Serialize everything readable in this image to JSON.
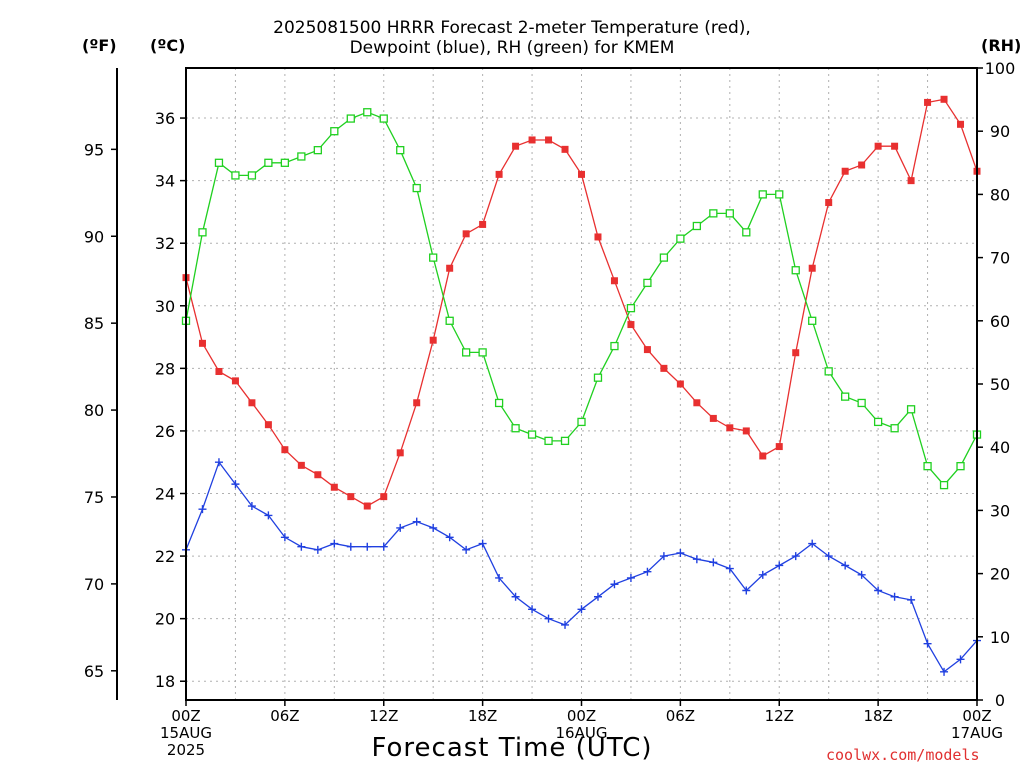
{
  "chart_data": {
    "type": "line",
    "title": [
      "2025081500 HRRR Forecast 2-meter Temperature (red),",
      "Dewpoint (blue), RH (green) for KMEM"
    ],
    "xlabel": "Forecast Time (UTC)",
    "credit": "coolwx.com/models",
    "units": {
      "fahrenheit": "(ºF)",
      "celsius": "(ºC)",
      "rh": "(RH)"
    },
    "x_hours": [
      0,
      1,
      2,
      3,
      4,
      5,
      6,
      7,
      8,
      9,
      10,
      11,
      12,
      13,
      14,
      15,
      16,
      17,
      18,
      19,
      20,
      21,
      22,
      23,
      24,
      25,
      26,
      27,
      28,
      29,
      30,
      31,
      32,
      33,
      34,
      35,
      36,
      37,
      38,
      39,
      40,
      41,
      42,
      43,
      44,
      45,
      46,
      47,
      48
    ],
    "x_ticks": [
      {
        "h": 0,
        "lines": [
          "00Z",
          "15AUG",
          "2025"
        ]
      },
      {
        "h": 6,
        "lines": [
          "06Z"
        ]
      },
      {
        "h": 12,
        "lines": [
          "12Z"
        ]
      },
      {
        "h": 18,
        "lines": [
          "18Z"
        ]
      },
      {
        "h": 24,
        "lines": [
          "00Z",
          "16AUG"
        ]
      },
      {
        "h": 30,
        "lines": [
          "06Z"
        ]
      },
      {
        "h": 36,
        "lines": [
          "12Z"
        ]
      },
      {
        "h": 42,
        "lines": [
          "18Z"
        ]
      },
      {
        "h": 48,
        "lines": [
          "00Z",
          "17AUG"
        ]
      }
    ],
    "celsius_axis": {
      "ylim": [
        17.4,
        37.6
      ],
      "ticks": [
        18,
        20,
        22,
        24,
        26,
        28,
        30,
        32,
        34,
        36
      ]
    },
    "fahrenheit_axis": {
      "ticks": [
        65,
        70,
        75,
        80,
        85,
        90,
        95
      ]
    },
    "rh_axis": {
      "ylim": [
        0,
        100
      ],
      "ticks": [
        0,
        10,
        20,
        30,
        40,
        50,
        60,
        70,
        80,
        90,
        100
      ]
    },
    "colors": {
      "temperature": "#e83030",
      "dewpoint": "#2040e0",
      "rh": "#20d020",
      "grid": "#b0b0b0"
    },
    "series": [
      {
        "key": "temperature",
        "axis": "celsius",
        "marker": "filled-square",
        "values": [
          30.9,
          28.8,
          27.9,
          27.6,
          26.9,
          26.2,
          25.4,
          24.9,
          24.6,
          24.2,
          23.9,
          23.6,
          23.9,
          25.3,
          26.9,
          28.9,
          31.2,
          32.3,
          32.6,
          34.2,
          35.1,
          35.3,
          35.3,
          35.0,
          34.2,
          32.2,
          30.8,
          29.4,
          28.6,
          28.0,
          27.5,
          26.9,
          26.4,
          26.1,
          26.0,
          25.2,
          25.5,
          28.5,
          31.2,
          33.3,
          34.3,
          34.5,
          35.1,
          35.1,
          34.0,
          36.5,
          36.6,
          35.8,
          34.3
        ]
      },
      {
        "key": "dewpoint",
        "axis": "celsius",
        "marker": "plus",
        "values": [
          22.2,
          23.5,
          25.0,
          24.3,
          23.6,
          23.3,
          22.6,
          22.3,
          22.2,
          22.4,
          22.3,
          22.3,
          22.3,
          22.9,
          23.1,
          22.9,
          22.6,
          22.2,
          22.4,
          21.3,
          20.7,
          20.3,
          20.0,
          19.8,
          20.3,
          20.7,
          21.1,
          21.3,
          21.5,
          22.0,
          22.1,
          21.9,
          21.8,
          21.6,
          20.9,
          21.4,
          21.7,
          22.0,
          22.4,
          22.0,
          21.7,
          21.4,
          20.9,
          20.7,
          20.6,
          19.2,
          18.3,
          18.7,
          19.3
        ]
      },
      {
        "key": "rh",
        "axis": "rh",
        "marker": "open-square",
        "values": [
          60,
          74,
          85,
          83,
          83,
          85,
          85,
          86,
          87,
          90,
          92,
          93,
          92,
          87,
          81,
          70,
          60,
          55,
          55,
          47,
          43,
          42,
          41,
          41,
          44,
          51,
          56,
          62,
          66,
          70,
          73,
          75,
          77,
          77,
          74,
          80,
          80,
          68,
          60,
          52,
          48,
          47,
          44,
          43,
          46,
          37,
          34,
          37,
          42
        ]
      }
    ]
  }
}
